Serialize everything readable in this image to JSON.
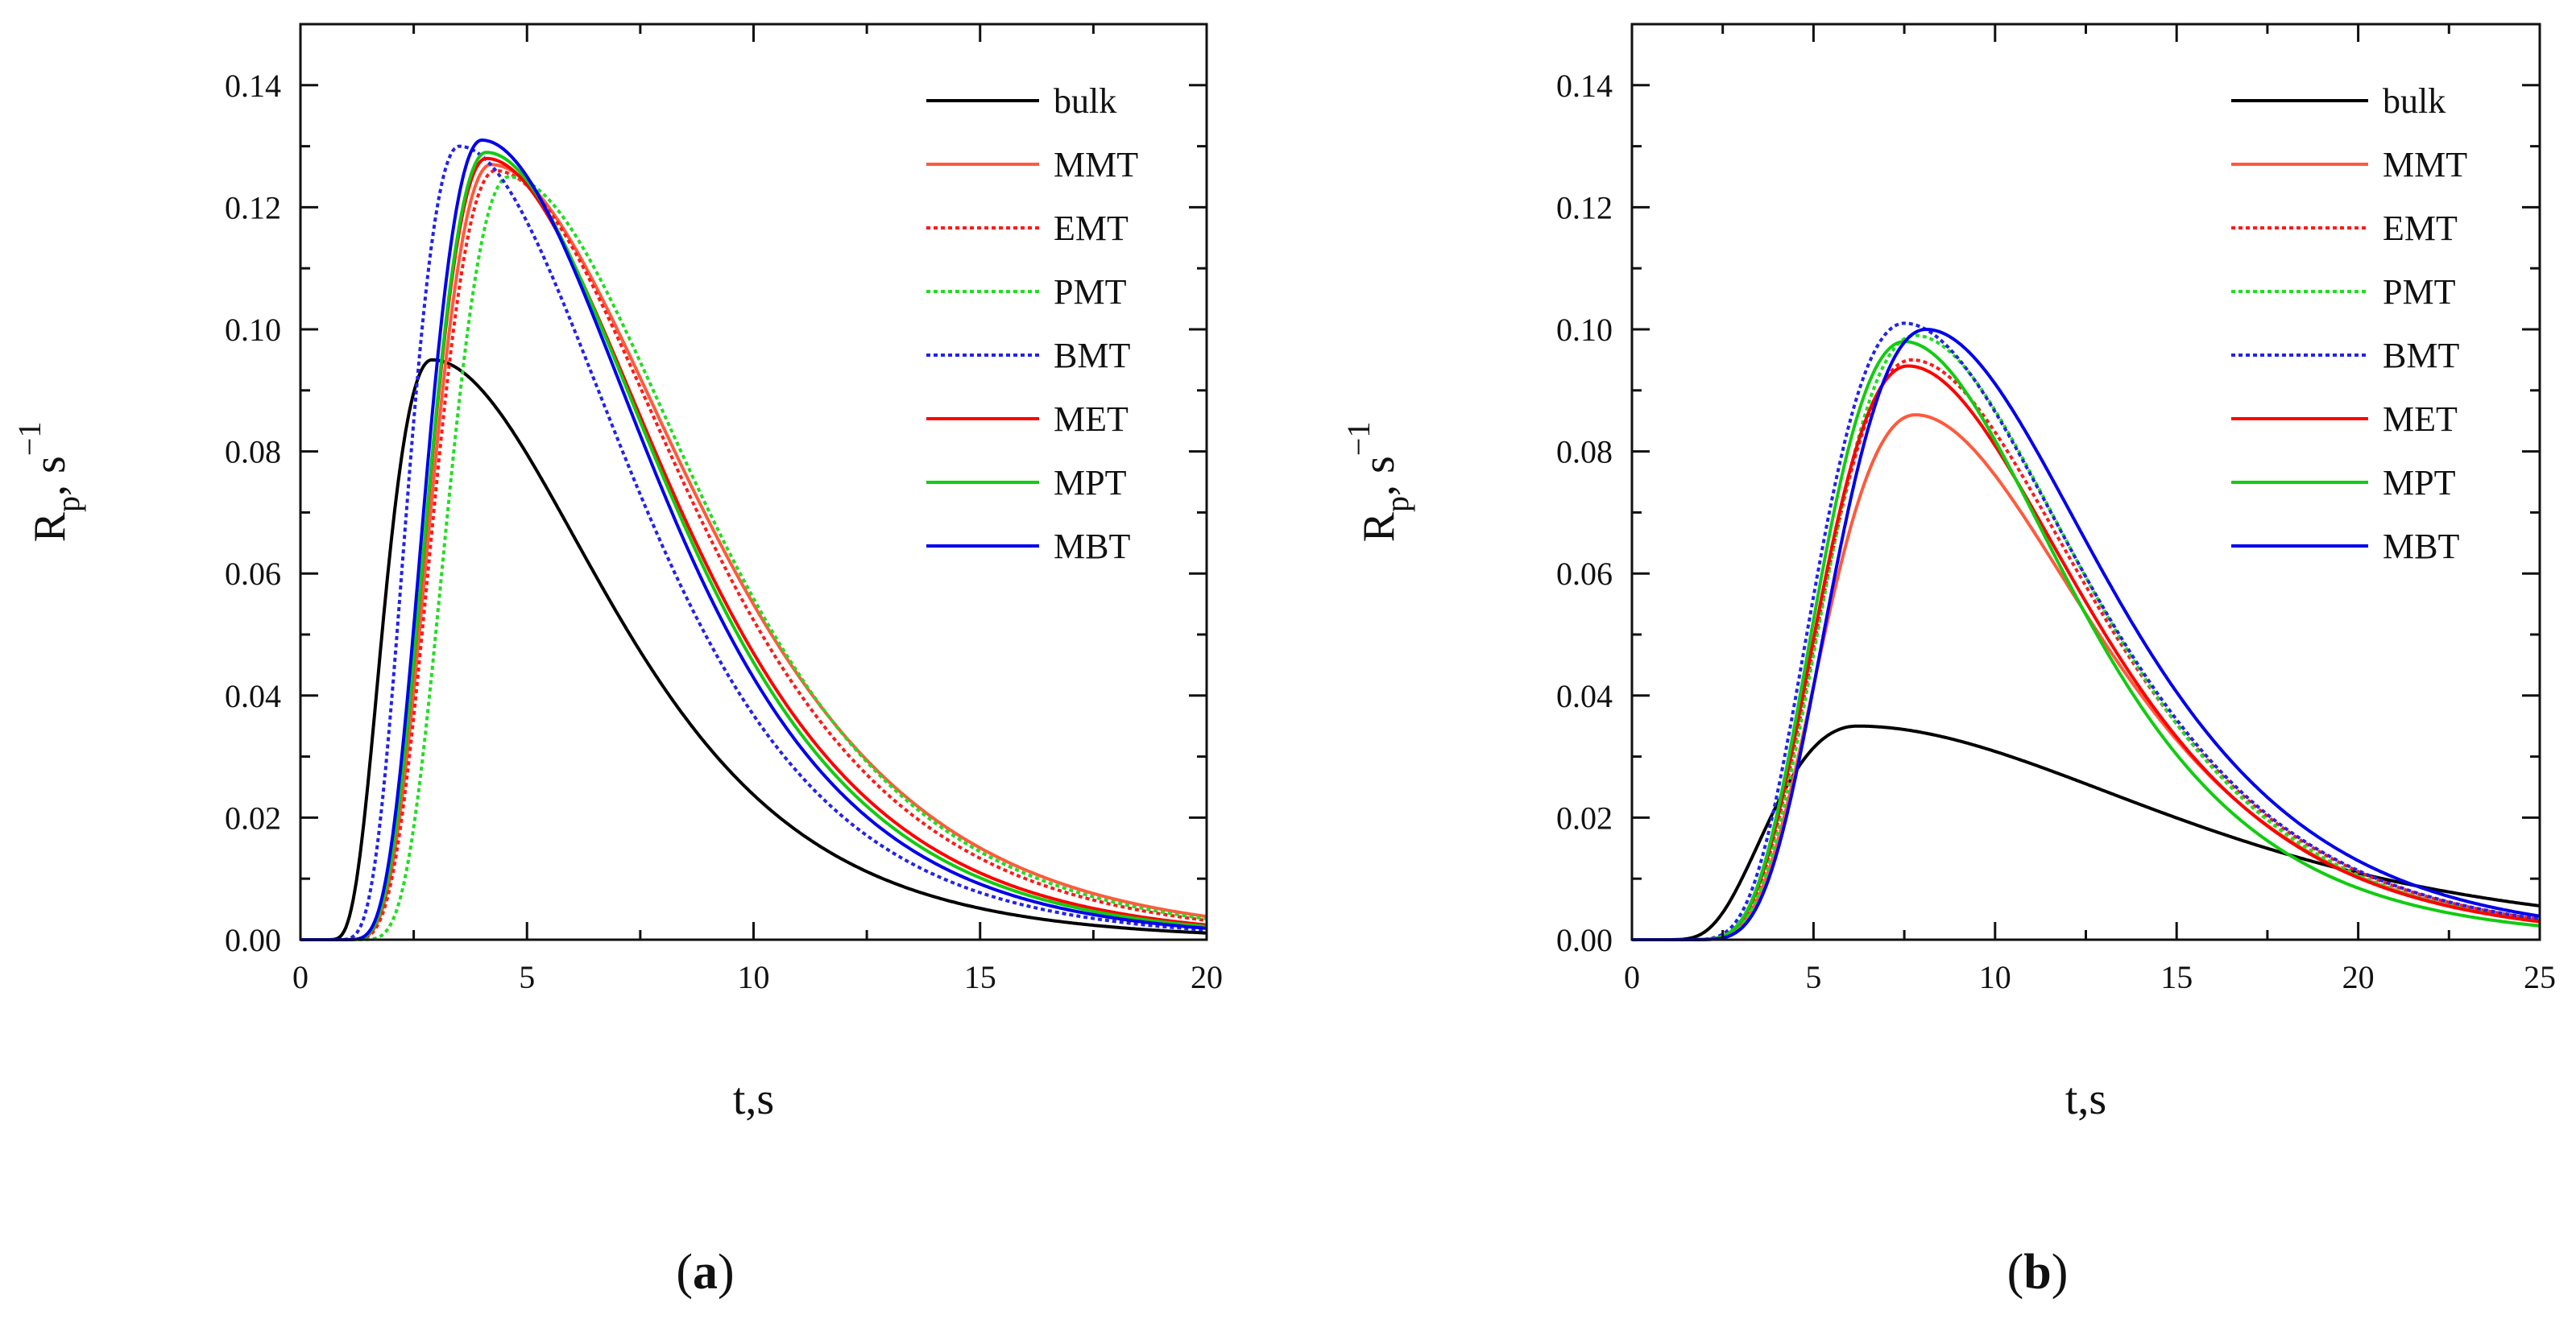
{
  "chart_data": [
    {
      "type": "line",
      "panel_label": {
        "open": "(",
        "letter": "a",
        "close": ")"
      },
      "xlabel": "t,s",
      "ylabel": {
        "main": "R",
        "sub": "p",
        "mid": ", s",
        "sup": "−1"
      },
      "xlim": [
        0,
        20
      ],
      "ylim": [
        0,
        0.15
      ],
      "xticks": [
        0,
        5,
        10,
        15,
        20
      ],
      "yticks": [
        0.0,
        0.02,
        0.04,
        0.06,
        0.08,
        0.1,
        0.12,
        0.14
      ],
      "ytick_decimals": 2,
      "grid": false,
      "legend_position": "top-right",
      "series": [
        {
          "name": "bulk",
          "color": "#000000",
          "dash": "solid",
          "peak_t": 2.9,
          "peak_r": 0.095,
          "onset": 0.4,
          "shape": 1.9,
          "tau": 3.9
        },
        {
          "name": "MMT",
          "color": "#ff5a3c",
          "dash": "solid",
          "peak_t": 4.2,
          "peak_r": 0.127,
          "onset": 0.5,
          "shape": 3.0,
          "tau": 4.4
        },
        {
          "name": "EMT",
          "color": "#ff1a1a",
          "dash": "dotted",
          "peak_t": 4.3,
          "peak_r": 0.126,
          "onset": 0.5,
          "shape": 3.0,
          "tau": 4.2
        },
        {
          "name": "PMT",
          "color": "#22dd22",
          "dash": "dotted",
          "peak_t": 4.6,
          "peak_r": 0.125,
          "onset": 0.7,
          "shape": 3.2,
          "tau": 4.2
        },
        {
          "name": "BMT",
          "color": "#2222ee",
          "dash": "dotted",
          "peak_t": 3.5,
          "peak_r": 0.13,
          "onset": 0.4,
          "shape": 2.8,
          "tau": 3.8
        },
        {
          "name": "MET",
          "color": "#ff0000",
          "dash": "solid",
          "peak_t": 4.1,
          "peak_r": 0.128,
          "onset": 0.5,
          "shape": 3.0,
          "tau": 4.0
        },
        {
          "name": "MPT",
          "color": "#11cc11",
          "dash": "solid",
          "peak_t": 4.1,
          "peak_r": 0.129,
          "onset": 0.5,
          "shape": 3.0,
          "tau": 3.9
        },
        {
          "name": "MBT",
          "color": "#0000ee",
          "dash": "solid",
          "peak_t": 4.0,
          "peak_r": 0.131,
          "onset": 0.5,
          "shape": 3.0,
          "tau": 3.8
        }
      ]
    },
    {
      "type": "line",
      "panel_label": {
        "open": "(",
        "letter": "b",
        "close": ")"
      },
      "xlabel": "t,s",
      "ylabel": {
        "main": "R",
        "sub": "p",
        "mid": ", s",
        "sup": "−1"
      },
      "xlim": [
        0,
        25
      ],
      "ylim": [
        0,
        0.15
      ],
      "xticks": [
        0,
        5,
        10,
        15,
        20,
        25
      ],
      "yticks": [
        0.0,
        0.02,
        0.04,
        0.06,
        0.08,
        0.1,
        0.12,
        0.14
      ],
      "ytick_decimals": 2,
      "grid": false,
      "legend_position": "top-right",
      "series": [
        {
          "name": "bulk",
          "color": "#000000",
          "dash": "solid",
          "peak_t": 6.2,
          "peak_r": 0.035,
          "onset": 0.4,
          "shape": 2.0,
          "tau": 8.5
        },
        {
          "name": "MMT",
          "color": "#ff5a3c",
          "dash": "solid",
          "peak_t": 7.8,
          "peak_r": 0.086,
          "onset": 0.6,
          "shape": 3.0,
          "tau": 5.0
        },
        {
          "name": "EMT",
          "color": "#ff1a1a",
          "dash": "dotted",
          "peak_t": 7.7,
          "peak_r": 0.095,
          "onset": 0.6,
          "shape": 3.0,
          "tau": 5.0
        },
        {
          "name": "PMT",
          "color": "#22dd22",
          "dash": "dotted",
          "peak_t": 7.8,
          "peak_r": 0.099,
          "onset": 0.6,
          "shape": 3.1,
          "tau": 4.8
        },
        {
          "name": "BMT",
          "color": "#2222ee",
          "dash": "dotted",
          "peak_t": 7.5,
          "peak_r": 0.101,
          "onset": 0.5,
          "shape": 3.0,
          "tau": 5.0
        },
        {
          "name": "MET",
          "color": "#ff0000",
          "dash": "solid",
          "peak_t": 7.6,
          "peak_r": 0.094,
          "onset": 0.6,
          "shape": 3.0,
          "tau": 4.9
        },
        {
          "name": "MPT",
          "color": "#11cc11",
          "dash": "solid",
          "peak_t": 7.5,
          "peak_r": 0.098,
          "onset": 0.6,
          "shape": 3.1,
          "tau": 4.6
        },
        {
          "name": "MBT",
          "color": "#0000ee",
          "dash": "solid",
          "peak_t": 8.1,
          "peak_r": 0.1,
          "onset": 0.6,
          "shape": 3.1,
          "tau": 5.0
        }
      ]
    }
  ]
}
